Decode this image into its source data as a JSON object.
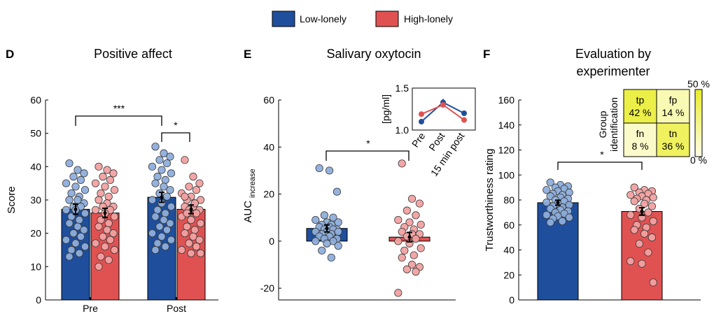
{
  "colors": {
    "low": "#1f4e9c",
    "high": "#e05252",
    "low_dot": "#8eaedb",
    "high_dot": "#f2a1a1",
    "cm_high": "#e9ec2a",
    "cm_low": "#fefee8"
  },
  "legend": {
    "low": "Low-lonely",
    "high": "High-lonely"
  },
  "chart_data": [
    {
      "panel": "D",
      "type": "bar",
      "title": "Positive affect",
      "ylabel": "Score",
      "ylim": [
        0,
        60
      ],
      "yticks": [
        0,
        10,
        20,
        30,
        40,
        50,
        60
      ],
      "categories": [
        "Pre",
        "Post"
      ],
      "series": [
        {
          "name": "Low-lonely",
          "values": [
            27.2,
            30.8
          ],
          "errors": [
            1.5,
            1.5
          ]
        },
        {
          "name": "High-lonely",
          "values": [
            26.1,
            27.2
          ],
          "errors": [
            1.4,
            1.3
          ]
        }
      ],
      "points": [
        [
          [
            41,
            39,
            38,
            37,
            36,
            35,
            34,
            33,
            32,
            31,
            30,
            30,
            29,
            28,
            28,
            27,
            27,
            26,
            25,
            24,
            23,
            22,
            21,
            20,
            19,
            18,
            17,
            16,
            15,
            14,
            13
          ],
          [
            40,
            39,
            38,
            37,
            36,
            35,
            34,
            33,
            32,
            31,
            30,
            29,
            28,
            28,
            27,
            27,
            26,
            25,
            24,
            23,
            22,
            21,
            20,
            19,
            18,
            17,
            16,
            15,
            13,
            12,
            10
          ]
        ],
        [
          [
            46,
            44,
            43,
            42,
            41,
            40,
            39,
            38,
            37,
            36,
            35,
            34,
            33,
            32,
            31,
            30,
            29,
            28,
            27,
            26,
            25,
            24,
            23,
            22,
            21,
            20,
            19,
            18,
            17,
            16,
            15
          ],
          [
            42,
            37,
            35,
            34,
            33,
            32,
            31,
            30,
            30,
            29,
            28,
            28,
            27,
            27,
            26,
            25,
            24,
            23,
            22,
            21,
            20,
            19,
            18,
            17,
            16,
            15,
            14,
            14,
            26,
            29,
            31
          ]
        ]
      ],
      "significance": [
        {
          "label": "***",
          "from": "Pre-Low",
          "to": "Post-Low"
        },
        {
          "label": "*",
          "from": "Post-Low",
          "to": "Post-High"
        }
      ]
    },
    {
      "panel": "E",
      "type": "bar",
      "title": "Salivary oxytocin",
      "ylabel": "AUC",
      "ylabel_sub": "increase",
      "ylim": [
        -25,
        60
      ],
      "yticks": [
        -20,
        0,
        20,
        40,
        60
      ],
      "categories": [
        "Low-lonely",
        "High-lonely"
      ],
      "values": [
        5.4,
        1.7
      ],
      "errors": [
        1.5,
        2.0
      ],
      "points": [
        [
          31,
          30,
          21,
          11,
          10,
          9,
          8,
          8,
          7,
          7,
          6,
          6,
          5,
          5,
          5,
          4,
          4,
          4,
          3,
          3,
          2,
          2,
          1,
          1,
          0,
          0,
          -1,
          -2,
          -4,
          -7
        ],
        [
          33,
          18,
          16,
          13,
          11,
          9,
          8,
          7,
          6,
          5,
          4,
          3,
          3,
          2,
          1,
          0,
          -1,
          -3,
          -4,
          -6,
          -7,
          -10,
          -11,
          -12,
          -13,
          -22
        ]
      ],
      "significance": [
        {
          "label": "*",
          "from": "Low-lonely",
          "to": "High-lonely"
        }
      ],
      "inset": {
        "type": "line",
        "ylabel": "[pg/ml]",
        "ylim": [
          1.0,
          1.5
        ],
        "yticks": [
          1.0,
          1.5
        ],
        "yticklabels": [
          "1.0",
          "1.5"
        ],
        "categories": [
          "Pre",
          "Post",
          "15 min post"
        ],
        "series": [
          {
            "name": "Low-lonely",
            "values": [
              1.1,
              1.33,
              1.2
            ],
            "errors": [
              0.03,
              0.04,
              0.03
            ]
          },
          {
            "name": "High-lonely",
            "values": [
              1.19,
              1.3,
              1.12
            ],
            "errors": [
              0.03,
              0.03,
              0.03
            ]
          }
        ]
      }
    },
    {
      "panel": "F",
      "type": "bar",
      "title": [
        "Evaluation by",
        "experimenter"
      ],
      "ylabel": "Trustworthiness rating",
      "ylim": [
        0,
        160
      ],
      "yticks": [
        0,
        20,
        40,
        60,
        80,
        100,
        120,
        140,
        160
      ],
      "categories": [
        "Low-lonely",
        "High-lonely"
      ],
      "values": [
        77.8,
        70.8
      ],
      "errors": [
        2.0,
        3.0
      ],
      "points": [
        [
          94,
          92,
          91,
          90,
          89,
          88,
          87,
          86,
          85,
          84,
          83,
          82,
          81,
          80,
          79,
          78,
          77,
          76,
          75,
          74,
          73,
          72,
          71,
          70,
          69,
          68,
          67,
          66,
          65,
          63,
          62
        ],
        [
          90,
          88,
          87,
          86,
          85,
          84,
          83,
          82,
          81,
          80,
          79,
          77,
          75,
          73,
          70,
          68,
          66,
          63,
          60,
          58,
          56,
          53,
          50,
          45,
          38,
          31,
          29,
          14
        ]
      ],
      "significance": [
        {
          "label": "*",
          "from": "Low-lonely",
          "to": "High-lonely"
        }
      ],
      "inset": {
        "type": "heatmap",
        "ylabel": [
          "Group",
          "identification"
        ],
        "cells": [
          {
            "label": "tp",
            "value": "42 %",
            "pct": 42
          },
          {
            "label": "fp",
            "value": "14 %",
            "pct": 14
          },
          {
            "label": "fn",
            "value": "8 %",
            "pct": 8
          },
          {
            "label": "tn",
            "value": "36 %",
            "pct": 36
          }
        ],
        "colorbar": {
          "max": "50 %",
          "min": "0 %",
          "vmax": 50,
          "vmin": 0
        }
      }
    }
  ]
}
